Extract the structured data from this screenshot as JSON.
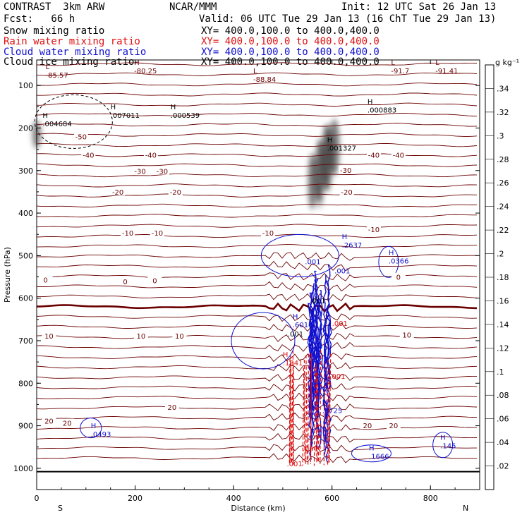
{
  "header": {
    "model": "CONTRAST  3km ARW",
    "org": "NCAR/MMM",
    "init": "Init: 12 UTC Sat 26 Jan 13",
    "fcst": "Fcst:   66 h",
    "valid": "Valid: 06 UTC Tue 29 Jan 13 (16 ChT Tue 29 Jan 13)",
    "fields": [
      {
        "name": "Snow mixing ratio",
        "xy": "XY= 400.0,100.0 to 400.0,400.0",
        "color": "#000000"
      },
      {
        "name": "Rain water mixing ratio",
        "xy": "XY= 400.0,100.0 to 400.0,400.0",
        "color": "#e01010"
      },
      {
        "name": "Cloud water mixing ratio",
        "xy": "XY= 400.0,100.0 to 400.0,400.0",
        "color": "#1010d0"
      },
      {
        "name": "Cloud ice mixing ratio",
        "xy": "XY= 400.0,100.0 to 400.0,400.0",
        "color": "#000000"
      }
    ]
  },
  "chart_data": {
    "type": "contour-cross-section",
    "xlabel": "Distance (km)",
    "ylabel": "Pressure (hPa)",
    "xlim": [
      0,
      900
    ],
    "ylim": [
      1050,
      40
    ],
    "x_ticks": [
      0,
      200,
      400,
      600,
      800
    ],
    "y_ticks": [
      100,
      200,
      300,
      400,
      500,
      600,
      700,
      800,
      900,
      1000
    ],
    "x_end_labels": {
      "left": "S",
      "right": "N"
    },
    "colorbar": {
      "unit": "g kg⁻¹",
      "levels": [
        0.02,
        0.04,
        0.06,
        0.08,
        0.1,
        0.12,
        0.14,
        0.16,
        0.18,
        0.2,
        0.22,
        0.24,
        0.26,
        0.28,
        0.3,
        0.32,
        0.34
      ],
      "labels": [
        ".02",
        ".04",
        ".06",
        ".08",
        ".1",
        ".12",
        ".14",
        ".16",
        ".18",
        ".2",
        ".22",
        ".24",
        ".26",
        ".28",
        ".3",
        ".32",
        ".34"
      ]
    },
    "temperature_labels": [
      {
        "text": "-50",
        "x": 90,
        "p": 222
      },
      {
        "text": "-40",
        "x": 105,
        "p": 265
      },
      {
        "text": "-40",
        "x": 232,
        "p": 265
      },
      {
        "text": "-40",
        "x": 685,
        "p": 265
      },
      {
        "text": "-40",
        "x": 735,
        "p": 265
      },
      {
        "text": "-30",
        "x": 210,
        "p": 303
      },
      {
        "text": "-30",
        "x": 255,
        "p": 303
      },
      {
        "text": "-30",
        "x": 628,
        "p": 300
      },
      {
        "text": "-20",
        "x": 165,
        "p": 352
      },
      {
        "text": "-20",
        "x": 282,
        "p": 352
      },
      {
        "text": "-20",
        "x": 630,
        "p": 352
      },
      {
        "text": "-10",
        "x": 185,
        "p": 448
      },
      {
        "text": "-10",
        "x": 245,
        "p": 448
      },
      {
        "text": "-10",
        "x": 470,
        "p": 448
      },
      {
        "text": "-10",
        "x": 685,
        "p": 440
      },
      {
        "text": "0",
        "x": 18,
        "p": 558
      },
      {
        "text": "0",
        "x": 180,
        "p": 562
      },
      {
        "text": "0",
        "x": 240,
        "p": 560
      },
      {
        "text": "0",
        "x": 735,
        "p": 552
      },
      {
        "text": "10",
        "x": 25,
        "p": 690
      },
      {
        "text": "10",
        "x": 212,
        "p": 690
      },
      {
        "text": "10",
        "x": 290,
        "p": 690
      },
      {
        "text": "10",
        "x": 752,
        "p": 688
      },
      {
        "text": "20",
        "x": 25,
        "p": 890
      },
      {
        "text": "20",
        "x": 62,
        "p": 895
      },
      {
        "text": "20",
        "x": 275,
        "p": 858
      },
      {
        "text": "20",
        "x": 672,
        "p": 901
      },
      {
        "text": "20",
        "x": 725,
        "p": 901
      }
    ],
    "extrema_labels": [
      {
        "mark": "L",
        "value": "-85.57",
        "x": 18,
        "p": 68,
        "color": "#6b0000"
      },
      {
        "mark": "H",
        "value": "-80.25",
        "x": 198,
        "p": 58,
        "color": "#6b0000"
      },
      {
        "mark": "L",
        "value": "-88.84",
        "x": 440,
        "p": 78,
        "color": "#6b0000"
      },
      {
        "mark": "L",
        "value": "-91.7",
        "x": 720,
        "p": 58,
        "color": "#6b0000"
      },
      {
        "mark": "L",
        "value": "-91.41",
        "x": 810,
        "p": 58,
        "color": "#6b0000"
      },
      {
        "mark": "H",
        "value": ".004684",
        "x": 12,
        "p": 183,
        "color": "#000000"
      },
      {
        "mark": "H",
        "value": ".007011",
        "x": 150,
        "p": 163,
        "color": "#000000"
      },
      {
        "mark": "H",
        "value": ".000539",
        "x": 272,
        "p": 163,
        "color": "#000000"
      },
      {
        "mark": "H",
        "value": ".000883",
        "x": 672,
        "p": 150,
        "color": "#000000"
      },
      {
        "mark": "H",
        "value": ".001327",
        "x": 590,
        "p": 240,
        "color": "#000000"
      },
      {
        "mark": "H",
        "value": ".2637",
        "x": 620,
        "p": 468,
        "color": "#1010d0"
      },
      {
        "mark": "H",
        "value": ".0366",
        "x": 715,
        "p": 505,
        "color": "#1010d0"
      },
      {
        "mark": "H",
        "value": ".6014",
        "x": 520,
        "p": 655,
        "color": "#1010d0"
      },
      {
        "mark": "H",
        "value": ".1341",
        "x": 500,
        "p": 745,
        "color": "#e01010"
      },
      {
        "mark": "H",
        "value": ".8725",
        "x": 580,
        "p": 857,
        "color": "#1010d0"
      },
      {
        "mark": "H",
        "value": ".0493",
        "x": 110,
        "p": 912,
        "color": "#1010d0"
      },
      {
        "mark": "H",
        "value": ".1666",
        "x": 675,
        "p": 965,
        "color": "#1010d0"
      },
      {
        "mark": "H",
        "value": ".145",
        "x": 820,
        "p": 940,
        "color": "#1010d0"
      }
    ],
    "small_labels": [
      {
        "text": ".001",
        "x": 545,
        "p": 520,
        "color": "#1010d0"
      },
      {
        "text": ".001",
        "x": 605,
        "p": 542,
        "color": "#1010d0"
      },
      {
        "text": ".001",
        "x": 555,
        "p": 612,
        "color": "#000000"
      },
      {
        "text": ".001",
        "x": 510,
        "p": 690,
        "color": "#000000"
      },
      {
        "text": ".001",
        "x": 600,
        "p": 665,
        "color": "#e01010"
      },
      {
        "text": ".001",
        "x": 595,
        "p": 790,
        "color": "#e01010"
      },
      {
        "text": ".001",
        "x": 540,
        "p": 960,
        "color": "#e01010"
      },
      {
        "text": ".001",
        "x": 508,
        "p": 995,
        "color": "#e01010"
      }
    ]
  }
}
